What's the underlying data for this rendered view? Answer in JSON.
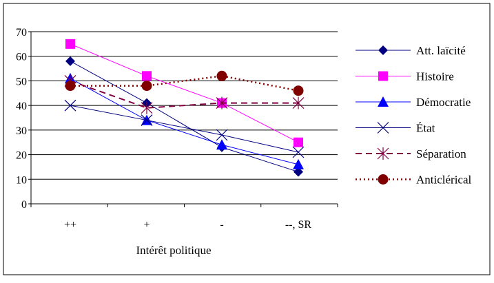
{
  "chart_data": {
    "type": "line",
    "categories": [
      "++",
      "+",
      "-",
      "--, SR"
    ],
    "xlabel": "Intérêt politique",
    "ylim": [
      0,
      70
    ],
    "yticks": [
      0,
      10,
      20,
      30,
      40,
      50,
      60,
      70
    ],
    "grid": "horizontal",
    "legend_position": "right",
    "series": [
      {
        "name": "Att. laïcité",
        "values": [
          58,
          41,
          23,
          13
        ],
        "color": "#000080",
        "marker": "diamond",
        "line": "solid"
      },
      {
        "name": "Histoire",
        "values": [
          65,
          52,
          41,
          25
        ],
        "color": "#ff00ff",
        "marker": "square",
        "line": "solid"
      },
      {
        "name": "Démocratie",
        "values": [
          51,
          34,
          24,
          16
        ],
        "color": "#0000ff",
        "marker": "triangle",
        "line": "solid"
      },
      {
        "name": "État",
        "values": [
          40,
          34,
          28,
          21
        ],
        "color": "#000080",
        "marker": "x",
        "line": "solid"
      },
      {
        "name": "Séparation",
        "values": [
          50,
          39,
          41,
          41
        ],
        "color": "#800040",
        "marker": "star",
        "line": "dashed"
      },
      {
        "name": "Anticlérical",
        "values": [
          48,
          48,
          52,
          46
        ],
        "color": "#800000",
        "marker": "circle",
        "line": "dotted"
      }
    ]
  }
}
